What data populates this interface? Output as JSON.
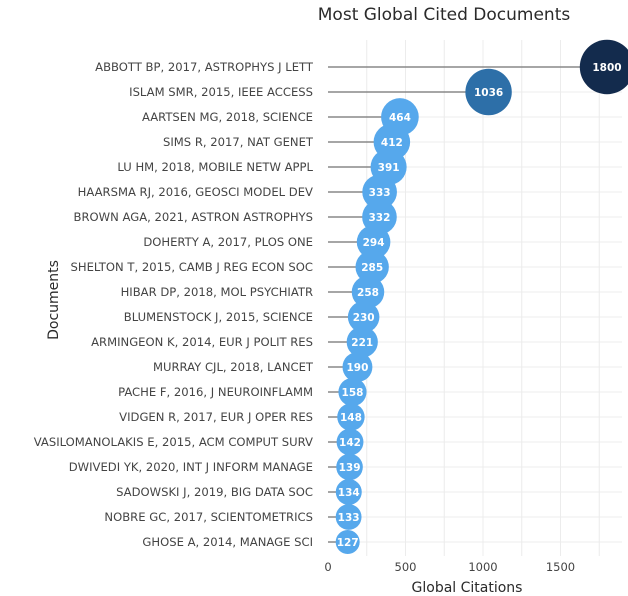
{
  "chart_data": {
    "type": "scatter",
    "title": "Most Global Cited Documents",
    "xlabel": "Global Citations",
    "ylabel": "Documents",
    "xlim": [
      0,
      1900
    ],
    "xticks": [
      0,
      500,
      1000,
      1500
    ],
    "grid": true,
    "categories": [
      "ABBOTT BP, 2017, ASTROPHYS J LETT",
      "ISLAM SMR, 2015, IEEE ACCESS",
      "AARTSEN MG, 2018, SCIENCE",
      "SIMS R, 2017, NAT GENET",
      "LU HM, 2018, MOBILE NETW APPL",
      "HAARSMA RJ, 2016, GEOSCI MODEL DEV",
      "BROWN AGA, 2021, ASTRON ASTROPHYS",
      "DOHERTY A, 2017, PLOS ONE",
      "SHELTON T, 2015, CAMB J REG ECON SOC",
      "HIBAR DP, 2018, MOL PSYCHIATR",
      "BLUMENSTOCK J, 2015, SCIENCE",
      "ARMINGEON K, 2014, EUR J POLIT RES",
      "MURRAY CJL, 2018, LANCET",
      "PACHE F, 2016, J NEUROINFLAMM",
      "VIDGEN R, 2017, EUR J OPER RES",
      "VASILOMANOLAKIS E, 2015, ACM COMPUT SURV",
      "DWIVEDI YK, 2020, INT J INFORM MANAGE",
      "SADOWSKI J, 2019, BIG DATA SOC",
      "NOBRE GC, 2017, SCIENTOMETRICS",
      "GHOSE A, 2014, MANAGE SCI"
    ],
    "values": [
      1800,
      1036,
      464,
      412,
      391,
      333,
      332,
      294,
      285,
      258,
      230,
      221,
      190,
      158,
      148,
      142,
      139,
      134,
      133,
      127
    ],
    "colors": {
      "low": "#56a8ec",
      "mid": "#2d6fa8",
      "high": "#132b4d",
      "stem": "#888888"
    }
  }
}
